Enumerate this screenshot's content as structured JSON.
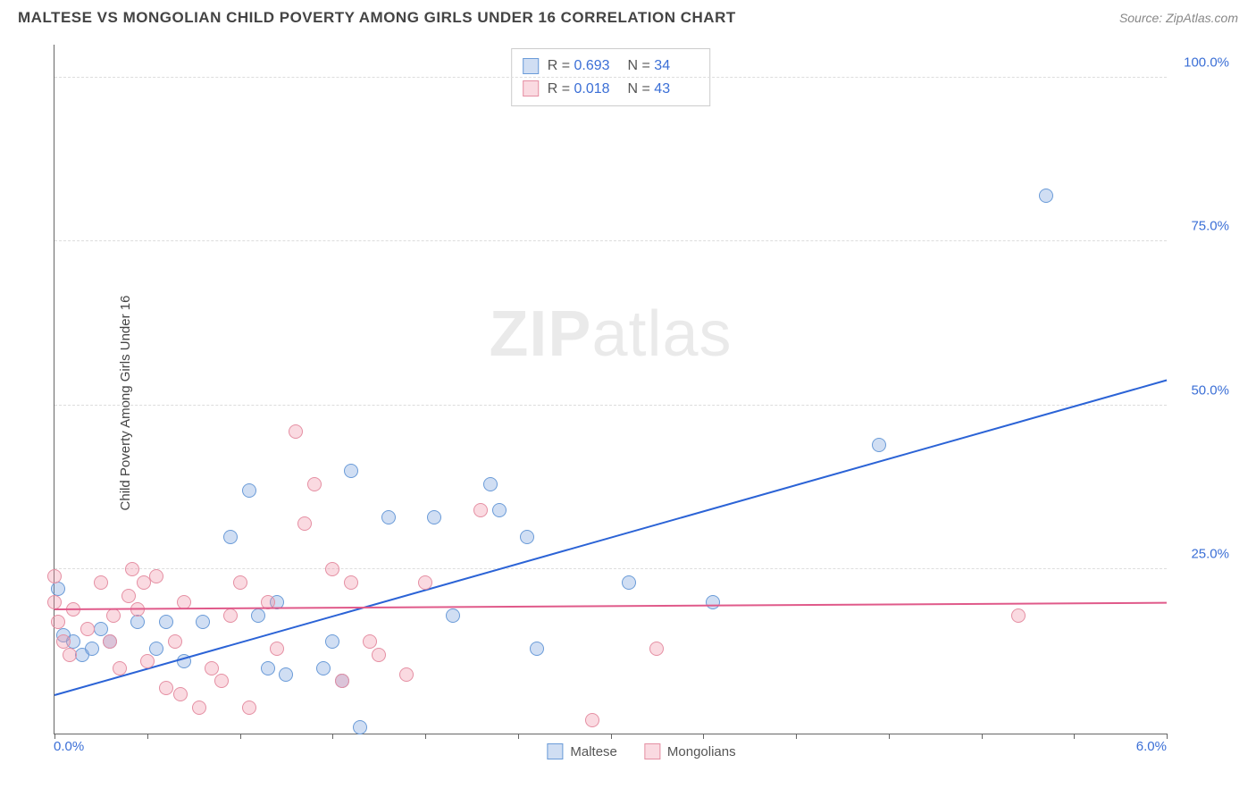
{
  "title": "MALTESE VS MONGOLIAN CHILD POVERTY AMONG GIRLS UNDER 16 CORRELATION CHART",
  "source": "Source: ZipAtlas.com",
  "ylabel": "Child Poverty Among Girls Under 16",
  "watermark_bold": "ZIP",
  "watermark_light": "atlas",
  "chart": {
    "type": "scatter",
    "xlim": [
      0,
      6
    ],
    "ylim": [
      0,
      105
    ],
    "x_min_label": "0.0%",
    "x_max_label": "6.0%",
    "y_ticks": [
      {
        "v": 25,
        "label": "25.0%"
      },
      {
        "v": 50,
        "label": "50.0%"
      },
      {
        "v": 75,
        "label": "75.0%"
      },
      {
        "v": 100,
        "label": "100.0%"
      }
    ],
    "x_tick_step": 0.5,
    "grid_color": "#dddddd",
    "axis_color": "#666666",
    "background_color": "#ffffff",
    "label_color": "#3b6fd6",
    "point_radius": 8,
    "series": [
      {
        "name": "Maltese",
        "fill": "rgba(120,160,220,0.35)",
        "stroke": "#6a9bd8",
        "trend_color": "#2b63d6",
        "R": "0.693",
        "N": "34",
        "trend": {
          "x1": 0,
          "y1": 6,
          "x2": 6,
          "y2": 54
        },
        "points": [
          [
            0.02,
            22
          ],
          [
            0.05,
            15
          ],
          [
            0.1,
            14
          ],
          [
            0.15,
            12
          ],
          [
            0.2,
            13
          ],
          [
            0.25,
            16
          ],
          [
            0.3,
            14
          ],
          [
            0.45,
            17
          ],
          [
            0.55,
            13
          ],
          [
            0.6,
            17
          ],
          [
            0.7,
            11
          ],
          [
            0.8,
            17
          ],
          [
            0.95,
            30
          ],
          [
            1.05,
            37
          ],
          [
            1.1,
            18
          ],
          [
            1.15,
            10
          ],
          [
            1.2,
            20
          ],
          [
            1.25,
            9
          ],
          [
            1.45,
            10
          ],
          [
            1.5,
            14
          ],
          [
            1.55,
            8
          ],
          [
            1.6,
            40
          ],
          [
            1.65,
            1
          ],
          [
            1.8,
            33
          ],
          [
            2.05,
            33
          ],
          [
            2.15,
            18
          ],
          [
            2.35,
            38
          ],
          [
            2.4,
            34
          ],
          [
            2.55,
            30
          ],
          [
            2.6,
            13
          ],
          [
            3.1,
            23
          ],
          [
            3.55,
            20
          ],
          [
            4.45,
            44
          ],
          [
            5.35,
            82
          ]
        ]
      },
      {
        "name": "Mongolians",
        "fill": "rgba(240,150,170,0.35)",
        "stroke": "#e58fa3",
        "trend_color": "#e05a8a",
        "R": "0.018",
        "N": "43",
        "trend": {
          "x1": 0,
          "y1": 19,
          "x2": 6,
          "y2": 20
        },
        "points": [
          [
            0.0,
            20
          ],
          [
            0.0,
            24
          ],
          [
            0.02,
            17
          ],
          [
            0.05,
            14
          ],
          [
            0.08,
            12
          ],
          [
            0.1,
            19
          ],
          [
            0.18,
            16
          ],
          [
            0.25,
            23
          ],
          [
            0.3,
            14
          ],
          [
            0.32,
            18
          ],
          [
            0.35,
            10
          ],
          [
            0.4,
            21
          ],
          [
            0.42,
            25
          ],
          [
            0.45,
            19
          ],
          [
            0.48,
            23
          ],
          [
            0.5,
            11
          ],
          [
            0.55,
            24
          ],
          [
            0.6,
            7
          ],
          [
            0.65,
            14
          ],
          [
            0.68,
            6
          ],
          [
            0.7,
            20
          ],
          [
            0.78,
            4
          ],
          [
            0.85,
            10
          ],
          [
            0.9,
            8
          ],
          [
            0.95,
            18
          ],
          [
            1.0,
            23
          ],
          [
            1.05,
            4
          ],
          [
            1.15,
            20
          ],
          [
            1.2,
            13
          ],
          [
            1.3,
            46
          ],
          [
            1.35,
            32
          ],
          [
            1.4,
            38
          ],
          [
            1.5,
            25
          ],
          [
            1.55,
            8
          ],
          [
            1.6,
            23
          ],
          [
            1.7,
            14
          ],
          [
            1.75,
            12
          ],
          [
            1.9,
            9
          ],
          [
            2.0,
            23
          ],
          [
            2.3,
            34
          ],
          [
            2.9,
            2
          ],
          [
            3.25,
            13
          ],
          [
            5.2,
            18
          ]
        ]
      }
    ]
  },
  "legend": {
    "series1": "Maltese",
    "series2": "Mongolians"
  }
}
